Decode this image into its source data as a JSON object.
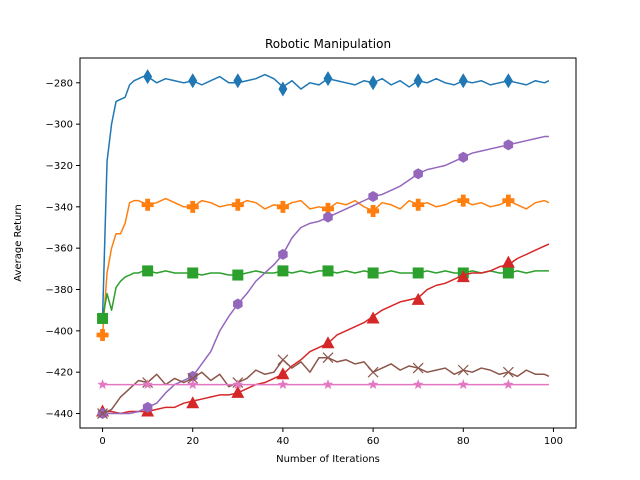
{
  "chart_data": {
    "type": "line",
    "title": "Robotic Manipulation",
    "xlabel": "Number of Iterations",
    "ylabel": "Average Return",
    "xlim": [
      -5,
      105
    ],
    "ylim": [
      -447,
      -268
    ],
    "xticks": [
      0,
      20,
      40,
      60,
      80,
      100
    ],
    "yticks": [
      -440,
      -420,
      -400,
      -380,
      -360,
      -340,
      -320,
      -300,
      -280
    ],
    "ytick_labels": [
      "−440",
      "−420",
      "−400",
      "−380",
      "−360",
      "−340",
      "−320",
      "−300",
      "−280"
    ],
    "grid": false,
    "legend": "none",
    "series": [
      {
        "color": "#1f77b4",
        "marker": "diamond",
        "x": [
          0,
          1,
          2,
          3,
          4,
          5,
          6,
          7,
          8,
          9,
          10,
          12,
          14,
          16,
          18,
          20,
          22,
          24,
          26,
          28,
          30,
          32,
          34,
          36,
          38,
          40,
          42,
          44,
          46,
          48,
          50,
          52,
          54,
          56,
          58,
          60,
          62,
          64,
          66,
          68,
          70,
          72,
          74,
          76,
          78,
          80,
          82,
          84,
          86,
          88,
          90,
          92,
          94,
          96,
          98,
          99
        ],
        "y": [
          -394,
          -318,
          -300,
          -289,
          -288,
          -287,
          -281,
          -279,
          -278,
          -277,
          -277,
          -280,
          -278,
          -279,
          -280,
          -279,
          -281,
          -279,
          -277,
          -280,
          -280,
          -279,
          -278,
          -276,
          -278,
          -282,
          -279,
          -283,
          -280,
          -281,
          -278,
          -279,
          -280,
          -281,
          -279,
          -280,
          -278,
          -281,
          -279,
          -282,
          -279,
          -280,
          -278,
          -280,
          -281,
          -279,
          -280,
          -279,
          -281,
          -280,
          -279,
          -280,
          -281,
          -279,
          -280,
          -279
        ],
        "marker_x": [
          10,
          20,
          30,
          40,
          50,
          60,
          70,
          80,
          90
        ],
        "marker_y": [
          -277,
          -279,
          -279,
          -283,
          -278,
          -280,
          -279,
          -279,
          -279
        ]
      },
      {
        "color": "#ff7f0e",
        "marker": "plus",
        "x": [
          0,
          1,
          2,
          3,
          4,
          5,
          6,
          7,
          8,
          9,
          10,
          12,
          14,
          16,
          18,
          20,
          22,
          24,
          26,
          28,
          30,
          32,
          34,
          36,
          38,
          40,
          42,
          44,
          46,
          48,
          50,
          52,
          54,
          56,
          58,
          60,
          62,
          64,
          66,
          68,
          70,
          72,
          74,
          76,
          78,
          80,
          82,
          84,
          86,
          88,
          90,
          92,
          94,
          96,
          98,
          99
        ],
        "y": [
          -402,
          -372,
          -360,
          -353,
          -353,
          -348,
          -338,
          -337,
          -337,
          -338,
          -339,
          -338,
          -336,
          -338,
          -340,
          -340,
          -337,
          -338,
          -340,
          -339,
          -339,
          -337,
          -338,
          -341,
          -339,
          -340,
          -338,
          -337,
          -341,
          -340,
          -341,
          -338,
          -339,
          -337,
          -340,
          -342,
          -338,
          -339,
          -341,
          -337,
          -339,
          -338,
          -340,
          -339,
          -337,
          -337,
          -339,
          -338,
          -340,
          -339,
          -337,
          -339,
          -341,
          -338,
          -337,
          -338
        ],
        "marker_x": [
          0,
          10,
          20,
          30,
          40,
          50,
          60,
          70,
          80,
          90
        ],
        "marker_y": [
          -402,
          -339,
          -340,
          -339,
          -340,
          -341,
          -342,
          -339,
          -337,
          -337
        ]
      },
      {
        "color": "#2ca02c",
        "marker": "square",
        "x": [
          0,
          1,
          2,
          3,
          4,
          5,
          6,
          7,
          8,
          9,
          10,
          12,
          14,
          16,
          18,
          20,
          22,
          24,
          26,
          28,
          30,
          32,
          34,
          36,
          38,
          40,
          42,
          44,
          46,
          48,
          50,
          52,
          54,
          56,
          58,
          60,
          62,
          64,
          66,
          68,
          70,
          72,
          74,
          76,
          78,
          80,
          82,
          84,
          86,
          88,
          90,
          92,
          94,
          96,
          98,
          99
        ],
        "y": [
          -394,
          -382,
          -390,
          -379,
          -376,
          -374,
          -373,
          -372,
          -372,
          -371,
          -371,
          -372,
          -371,
          -372,
          -372,
          -372,
          -373,
          -372,
          -372,
          -373,
          -373,
          -372,
          -371,
          -372,
          -372,
          -371,
          -372,
          -371,
          -372,
          -371,
          -371,
          -372,
          -371,
          -372,
          -371,
          -372,
          -372,
          -371,
          -372,
          -372,
          -372,
          -371,
          -372,
          -371,
          -372,
          -372,
          -371,
          -372,
          -371,
          -372,
          -372,
          -371,
          -372,
          -371,
          -371,
          -371
        ],
        "marker_x": [
          0,
          10,
          20,
          30,
          40,
          50,
          60,
          70,
          80,
          90
        ],
        "marker_y": [
          -394,
          -371,
          -372,
          -373,
          -371,
          -371,
          -372,
          -372,
          -372,
          -372
        ]
      },
      {
        "color": "#d62728",
        "marker": "triangle",
        "x": [
          0,
          2,
          4,
          6,
          8,
          10,
          12,
          14,
          16,
          18,
          20,
          22,
          24,
          26,
          28,
          30,
          32,
          34,
          36,
          38,
          40,
          42,
          44,
          46,
          48,
          50,
          52,
          54,
          56,
          58,
          60,
          62,
          64,
          66,
          68,
          70,
          72,
          74,
          76,
          78,
          80,
          82,
          84,
          86,
          88,
          90,
          92,
          94,
          96,
          98,
          99
        ],
        "y": [
          -439,
          -439,
          -440,
          -439,
          -439,
          -439,
          -438,
          -437,
          -437,
          -435,
          -434,
          -433,
          -432,
          -431,
          -431,
          -430,
          -428,
          -426,
          -425,
          -423,
          -421,
          -417,
          -414,
          -410,
          -408,
          -406,
          -402,
          -400,
          -398,
          -396,
          -393,
          -390,
          -388,
          -386,
          -385,
          -384,
          -380,
          -378,
          -377,
          -375,
          -373,
          -372,
          -372,
          -371,
          -369,
          -368,
          -365,
          -363,
          -361,
          -359,
          -358
        ],
        "marker_x": [
          0,
          10,
          20,
          30,
          40,
          50,
          60,
          70,
          80,
          90
        ],
        "marker_y": [
          -439,
          -439,
          -435,
          -430,
          -421,
          -406,
          -394,
          -385,
          -374,
          -367
        ]
      },
      {
        "color": "#9467bd",
        "marker": "hexagon",
        "x": [
          0,
          2,
          4,
          6,
          8,
          10,
          12,
          14,
          16,
          18,
          20,
          22,
          24,
          26,
          28,
          30,
          32,
          34,
          36,
          38,
          40,
          42,
          44,
          46,
          48,
          50,
          52,
          54,
          56,
          58,
          60,
          62,
          64,
          66,
          68,
          70,
          72,
          74,
          76,
          78,
          80,
          82,
          84,
          86,
          88,
          90,
          92,
          94,
          96,
          98,
          99
        ],
        "y": [
          -440,
          -440,
          -440,
          -440,
          -439,
          -437,
          -435,
          -430,
          -426,
          -424,
          -422,
          -416,
          -410,
          -400,
          -393,
          -387,
          -382,
          -376,
          -372,
          -368,
          -363,
          -355,
          -350,
          -348,
          -347,
          -345,
          -343,
          -341,
          -339,
          -337,
          -335,
          -334,
          -332,
          -330,
          -327,
          -324,
          -322,
          -321,
          -320,
          -318,
          -316,
          -314,
          -313,
          -312,
          -311,
          -310,
          -309,
          -308,
          -307,
          -306,
          -306
        ],
        "marker_x": [
          0,
          10,
          20,
          30,
          40,
          50,
          60,
          70,
          80,
          90
        ],
        "marker_y": [
          -440,
          -437,
          -422,
          -387,
          -363,
          -345,
          -335,
          -324,
          -316,
          -310
        ]
      },
      {
        "color": "#8c564b",
        "marker": "x",
        "x": [
          0,
          2,
          4,
          6,
          8,
          10,
          12,
          14,
          16,
          18,
          20,
          22,
          24,
          26,
          28,
          30,
          32,
          34,
          36,
          38,
          40,
          42,
          44,
          46,
          48,
          50,
          52,
          54,
          56,
          58,
          60,
          62,
          64,
          66,
          68,
          70,
          72,
          74,
          76,
          78,
          80,
          82,
          84,
          86,
          88,
          90,
          92,
          94,
          96,
          98,
          99
        ],
        "y": [
          -440,
          -438,
          -432,
          -428,
          -424,
          -425,
          -421,
          -426,
          -423,
          -425,
          -423,
          -420,
          -424,
          -421,
          -427,
          -425,
          -423,
          -419,
          -421,
          -420,
          -414,
          -418,
          -415,
          -420,
          -413,
          -413,
          -415,
          -414,
          -416,
          -415,
          -420,
          -418,
          -416,
          -419,
          -417,
          -418,
          -420,
          -419,
          -418,
          -421,
          -419,
          -420,
          -418,
          -419,
          -421,
          -420,
          -422,
          -419,
          -421,
          -421,
          -422
        ],
        "marker_x": [
          0,
          10,
          20,
          30,
          40,
          50,
          60,
          70,
          80,
          90
        ],
        "marker_y": [
          -440,
          -425,
          -423,
          -425,
          -414,
          -413,
          -420,
          -418,
          -419,
          -420
        ]
      },
      {
        "color": "#e377c2",
        "marker": "star",
        "x": [
          0,
          10,
          20,
          30,
          40,
          50,
          60,
          70,
          80,
          90,
          99
        ],
        "y": [
          -426,
          -426,
          -426,
          -426,
          -426,
          -426,
          -426,
          -426,
          -426,
          -426,
          -426
        ],
        "marker_x": [
          0,
          10,
          20,
          30,
          40,
          50,
          60,
          70,
          80,
          90
        ],
        "marker_y": [
          -426,
          -426,
          -426,
          -426,
          -426,
          -426,
          -426,
          -426,
          -426,
          -426
        ]
      }
    ]
  }
}
